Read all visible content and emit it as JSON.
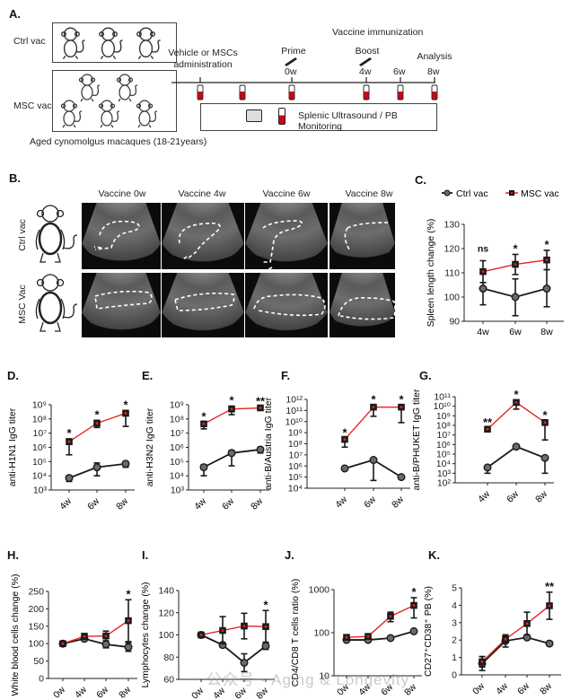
{
  "panel_labels": {
    "a": "A.",
    "b": "B.",
    "c": "C.",
    "d": "D.",
    "e": "E.",
    "f": "F.",
    "g": "G.",
    "h": "H.",
    "i": "I.",
    "j": "J.",
    "k": "K."
  },
  "panel_a": {
    "groups": [
      {
        "label": "Ctrl vac",
        "count": 3
      },
      {
        "label": "MSC vac",
        "count": 5
      }
    ],
    "cohort_caption": "Aged cynomolgus macaques (18-21years)",
    "timeline": {
      "header": "Vaccine immunization",
      "events": [
        {
          "label": "Vehicle or MSCs administration",
          "week": ""
        },
        {
          "label": "Prime",
          "week": "0w"
        },
        {
          "label": "Boost",
          "week": "4w"
        },
        {
          "label": "",
          "week": "6w"
        },
        {
          "label": "Analysis",
          "week": "8w"
        }
      ],
      "monitoring": "Splenic Ultrasound / PB Monitoring"
    }
  },
  "panel_b": {
    "columns": [
      "Vaccine 0w",
      "Vaccine 4w",
      "Vaccine 6w",
      "Vaccine 8w"
    ],
    "rows": [
      "Ctrl vac",
      "MSC Vac"
    ]
  },
  "colors": {
    "ctrl": "#1a1a1a",
    "ctrl_marker": "#6b6b6b",
    "msc": "#e8231f",
    "msc_marker": "#1a1a1a"
  },
  "watermark": "公众号 · Aging & Longevity",
  "chart_data": [
    {
      "id": "C",
      "type": "line",
      "ylabel": "Spleen length change (%)",
      "yscale": "linear",
      "ylim": [
        90,
        130
      ],
      "yticks": [
        90,
        100,
        110,
        120,
        130
      ],
      "categories": [
        "4w",
        "6w",
        "8w"
      ],
      "legend": [
        "Ctrl vac",
        "MSC vac"
      ],
      "legend_position": "top",
      "series": [
        {
          "name": "Ctrl vac",
          "values": [
            103.5,
            100,
            103.5
          ],
          "lower": [
            96.8,
            92.3,
            96
          ],
          "upper": [
            106,
            107.5,
            111.3
          ]
        },
        {
          "name": "MSC vac",
          "values": [
            110.5,
            113.5,
            115.3
          ],
          "lower": [
            106,
            109.3,
            111.3
          ],
          "upper": [
            115,
            117.6,
            119.3
          ]
        }
      ],
      "significance": [
        "ns",
        "*",
        "*"
      ]
    },
    {
      "id": "D",
      "type": "line",
      "ylabel": "anti-H1N1 IgG titer",
      "yscale": "log",
      "ylim": [
        1000.0,
        1000000000.0
      ],
      "categories": [
        "4w",
        "6w",
        "8w"
      ],
      "series": [
        {
          "name": "Ctrl vac",
          "values": [
            7000.0,
            40000.0,
            70000.0
          ],
          "lower": [
            4000.0,
            10000.0,
            40000.0
          ],
          "upper": [
            10000.0,
            80000.0,
            100000.0
          ]
        },
        {
          "name": "MSC vac",
          "values": [
            2500000.0,
            50000000.0,
            250000000.0
          ],
          "lower": [
            300000.0,
            25000000.0,
            30000000.0
          ],
          "upper": [
            4000000.0,
            80000000.0,
            400000000.0
          ]
        }
      ],
      "significance": [
        "*",
        "*",
        "*"
      ]
    },
    {
      "id": "E",
      "type": "line",
      "ylabel": "anti-H3N2 IgG titer",
      "yscale": "log",
      "ylim": [
        1000.0,
        1000000000.0
      ],
      "categories": [
        "4w",
        "6w",
        "8w"
      ],
      "series": [
        {
          "name": "Ctrl vac",
          "values": [
            40000.0,
            400000.0,
            700000.0
          ],
          "lower": [
            10000.0,
            50000.0,
            400000.0
          ],
          "upper": [
            60000.0,
            600000.0,
            1000000.0
          ]
        },
        {
          "name": "MSC vac",
          "values": [
            45000000.0,
            500000000.0,
            600000000.0
          ],
          "lower": [
            20000000.0,
            200000000.0,
            500000000.0
          ],
          "upper": [
            60000000.0,
            800000000.0,
            700000000.0
          ]
        }
      ],
      "significance": [
        "*",
        "*",
        "**"
      ]
    },
    {
      "id": "F",
      "type": "line",
      "ylabel": "anti-B/Austria IgG titer",
      "yscale": "log",
      "ylim": [
        10000.0,
        1000000000000.0
      ],
      "categories": [
        "4w",
        "6w",
        "8w"
      ],
      "series": [
        {
          "name": "Ctrl vac",
          "values": [
            600000.0,
            3500000.0,
            100000.0
          ],
          "lower": [
            400000.0,
            50000.0,
            90000.0
          ],
          "upper": [
            800000.0,
            5000000.0,
            110000.0
          ]
        },
        {
          "name": "MSC vac",
          "values": [
            250000000.0,
            200000000000.0,
            200000000000.0
          ],
          "lower": [
            50000000.0,
            30000000000.0,
            8000000000.0
          ],
          "upper": [
            300000000.0,
            300000000000.0,
            300000000000.0
          ]
        }
      ],
      "significance": [
        "*",
        "*",
        "*"
      ]
    },
    {
      "id": "G",
      "type": "line",
      "ylabel": "anti-B/PHUKET IgG titer",
      "yscale": "log",
      "ylim": [
        100.0,
        100000000000.0
      ],
      "categories": [
        "4w",
        "6w",
        "8w"
      ],
      "series": [
        {
          "name": "Ctrl vac",
          "values": [
            4000.0,
            600000.0,
            40000.0
          ],
          "lower": [
            1000.0,
            500000.0,
            1000.0
          ],
          "upper": [
            6000.0,
            700000.0,
            60000.0
          ]
        },
        {
          "name": "MSC vac",
          "values": [
            40000000.0,
            25000000000.0,
            200000000.0
          ],
          "lower": [
            30000000.0,
            5000000000.0,
            3000000.0
          ],
          "upper": [
            50000000.0,
            40000000000.0,
            300000000.0
          ]
        }
      ],
      "significance": [
        "**",
        "*",
        "*"
      ]
    },
    {
      "id": "H",
      "type": "line",
      "ylabel": "White blood cells change (%)",
      "yscale": "linear",
      "ylim": [
        0,
        250
      ],
      "yticks": [
        0,
        50,
        100,
        150,
        200,
        250
      ],
      "categories": [
        "0w",
        "4w",
        "6w",
        "8w"
      ],
      "series": [
        {
          "name": "Ctrl vac",
          "values": [
            100,
            114,
            98,
            90
          ],
          "lower": [
            97,
            109,
            88,
            78
          ],
          "upper": [
            103,
            119,
            108,
            102
          ]
        },
        {
          "name": "MSC vac",
          "values": [
            100,
            121,
            122,
            166
          ],
          "lower": [
            97,
            113,
            108,
            106
          ],
          "upper": [
            103,
            129,
            136,
            226
          ]
        }
      ],
      "significance": [
        "",
        "",
        "",
        "*"
      ]
    },
    {
      "id": "I",
      "type": "line",
      "ylabel": "Lymphocytes change (%)",
      "yscale": "linear",
      "ylim": [
        60,
        140
      ],
      "yticks": [
        60,
        80,
        100,
        120,
        140
      ],
      "categories": [
        "0w",
        "4w",
        "6w",
        "8w"
      ],
      "series": [
        {
          "name": "Ctrl vac",
          "values": [
            100,
            91,
            75,
            90
          ],
          "lower": [
            99,
            89,
            67,
            87
          ],
          "upper": [
            101,
            93,
            83,
            93
          ]
        },
        {
          "name": "MSC vac",
          "values": [
            100,
            104,
            108,
            107.5
          ],
          "lower": [
            99,
            92,
            96.5,
            93.5
          ],
          "upper": [
            101,
            116.5,
            119.5,
            122
          ]
        }
      ],
      "significance": [
        "",
        "",
        "",
        "*"
      ]
    },
    {
      "id": "J",
      "type": "line",
      "ylabel": "CD4/CD8 T cells ratio (%)",
      "yscale": "log",
      "ylim": [
        10,
        1000
      ],
      "categories": [
        "0w",
        "4w",
        "6w",
        "8w"
      ],
      "series": [
        {
          "name": "Ctrl vac",
          "values": [
            68,
            68,
            75,
            108
          ],
          "lower": [
            64,
            64,
            71,
            102
          ],
          "upper": [
            72,
            72,
            79,
            114
          ]
        },
        {
          "name": "MSC vac",
          "values": [
            78,
            82,
            240,
            430
          ],
          "lower": [
            72,
            76,
            180,
            220
          ],
          "upper": [
            84,
            88,
            300,
            650
          ]
        }
      ],
      "significance": [
        "",
        "",
        "",
        "*"
      ]
    },
    {
      "id": "K",
      "type": "line",
      "ylabel": "CD27⁺CD38⁺ PB (%)",
      "yscale": "linear",
      "ylim": [
        0,
        5
      ],
      "yticks": [
        0,
        1,
        2,
        3,
        4,
        5
      ],
      "categories": [
        "0w",
        "4w",
        "6w",
        "8w"
      ],
      "series": [
        {
          "name": "Ctrl vac",
          "values": [
            0.65,
            1.95,
            2.15,
            1.8
          ],
          "lower": [
            0.25,
            1.6,
            2.05,
            1.7
          ],
          "upper": [
            1.05,
            2.3,
            2.25,
            1.9
          ]
        },
        {
          "name": "MSC vac",
          "values": [
            0.75,
            2.05,
            2.95,
            3.97
          ],
          "lower": [
            0.45,
            1.85,
            2.3,
            3.19
          ],
          "upper": [
            1.05,
            2.25,
            3.6,
            4.75
          ]
        }
      ],
      "significance": [
        "",
        "",
        "",
        "**"
      ]
    }
  ]
}
